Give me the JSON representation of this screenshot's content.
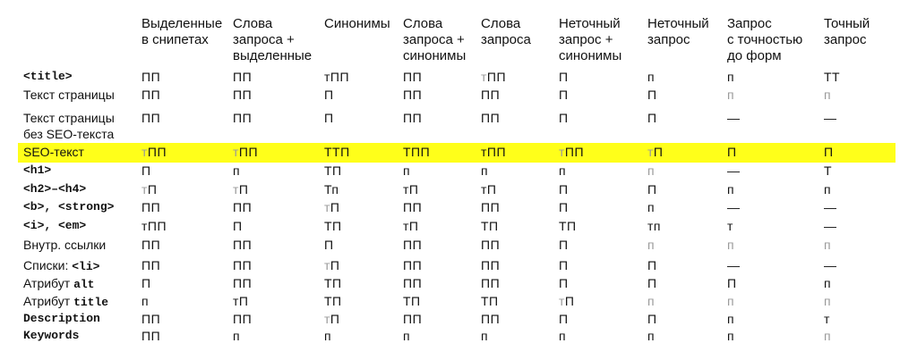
{
  "columns": [
    "Выделенные\nв снипетах",
    "Слова\nзапроса +\nвыделенные",
    "Синонимы",
    "Слова\nзапроса +\nсинонимы",
    "Слова\nзапроса",
    "Неточный\nзапрос +\nсинонимы",
    "Неточный\nзапрос",
    "Запрос\nс точностью\nдо форм",
    "Точный\nзапрос"
  ],
  "rows": [
    {
      "label": "<title>",
      "label_style": "mono",
      "highlight": false,
      "cells": [
        {
          "text": "ПП",
          "gray": false
        },
        {
          "text": "ПП",
          "gray": false
        },
        {
          "text": "тПП",
          "gray": false
        },
        {
          "text": "ПП",
          "gray": false
        },
        {
          "pre": "т",
          "text": "ПП",
          "gray": false
        },
        {
          "text": "П",
          "gray": false
        },
        {
          "text": "п",
          "gray": false
        },
        {
          "text": "п",
          "gray": false
        },
        {
          "text": "ТТ",
          "gray": false
        }
      ]
    },
    {
      "label": "Текст страницы",
      "label_style": "plain",
      "highlight": false,
      "cells": [
        {
          "text": "ПП",
          "gray": false
        },
        {
          "text": "ПП",
          "gray": false
        },
        {
          "text": "П",
          "gray": false
        },
        {
          "text": "ПП",
          "gray": false
        },
        {
          "text": "ПП",
          "gray": false
        },
        {
          "text": "П",
          "gray": false
        },
        {
          "text": "П",
          "gray": false
        },
        {
          "text": "п",
          "gray": true
        },
        {
          "text": "п",
          "gray": true
        }
      ]
    },
    {
      "label": "Текст страницы\nбез SEO-текста",
      "label_style": "plain",
      "highlight": false,
      "cells": [
        {
          "text": "ПП",
          "gray": false
        },
        {
          "text": "ПП",
          "gray": false
        },
        {
          "text": "П",
          "gray": false
        },
        {
          "text": "ПП",
          "gray": false
        },
        {
          "text": "ПП",
          "gray": false
        },
        {
          "text": "П",
          "gray": false
        },
        {
          "text": "П",
          "gray": false
        },
        {
          "text": "—",
          "gray": false
        },
        {
          "text": "—",
          "gray": false
        }
      ]
    },
    {
      "label": "SEO-текст",
      "label_style": "plain",
      "highlight": true,
      "cells": [
        {
          "pre": "т",
          "text": "ПП",
          "gray": false
        },
        {
          "pre": "т",
          "text": "ПП",
          "gray": false
        },
        {
          "text": "ТТП",
          "gray": false
        },
        {
          "text": "ТПП",
          "gray": false
        },
        {
          "text": "тПП",
          "gray": false
        },
        {
          "pre": "т",
          "text": "ПП",
          "gray": false
        },
        {
          "pre": "т",
          "text": "П",
          "gray": false
        },
        {
          "text": "П",
          "gray": false
        },
        {
          "text": "П",
          "gray": false
        }
      ]
    },
    {
      "label": "<h1>",
      "label_style": "mono",
      "highlight": false,
      "cells": [
        {
          "text": "П",
          "gray": false
        },
        {
          "text": "п",
          "gray": false
        },
        {
          "text": "ТП",
          "gray": false
        },
        {
          "text": "п",
          "gray": false
        },
        {
          "text": "п",
          "gray": false
        },
        {
          "text": "п",
          "gray": false
        },
        {
          "text": "п",
          "gray": true
        },
        {
          "text": "—",
          "gray": false
        },
        {
          "text": "Т",
          "gray": false
        }
      ]
    },
    {
      "label": "<h2>–<h4>",
      "label_style": "mono",
      "highlight": false,
      "cells": [
        {
          "pre": "т",
          "text": "П",
          "gray": false
        },
        {
          "pre": "т",
          "text": "П",
          "gray": false
        },
        {
          "text": "Тп",
          "gray": false
        },
        {
          "text": "тП",
          "gray": false
        },
        {
          "text": "тП",
          "gray": false
        },
        {
          "text": "П",
          "gray": false
        },
        {
          "text": "П",
          "gray": false
        },
        {
          "text": "п",
          "gray": false
        },
        {
          "text": "п",
          "gray": false
        }
      ]
    },
    {
      "label": "<b>, <strong>",
      "label_style": "mono",
      "highlight": false,
      "cells": [
        {
          "text": "ПП",
          "gray": false
        },
        {
          "text": "ПП",
          "gray": false
        },
        {
          "pre": "т",
          "text": "П",
          "gray": false
        },
        {
          "text": "ПП",
          "gray": false
        },
        {
          "text": "ПП",
          "gray": false
        },
        {
          "text": "П",
          "gray": false
        },
        {
          "text": "п",
          "gray": false
        },
        {
          "text": "—",
          "gray": false
        },
        {
          "text": "—",
          "gray": false
        }
      ]
    },
    {
      "label": "<i>, <em>",
      "label_style": "mono",
      "highlight": false,
      "cells": [
        {
          "text": "тПП",
          "gray": false
        },
        {
          "text": "П",
          "gray": false
        },
        {
          "text": "ТП",
          "gray": false
        },
        {
          "text": "тП",
          "gray": false
        },
        {
          "text": "ТП",
          "gray": false
        },
        {
          "text": "ТП",
          "gray": false
        },
        {
          "text": "тп",
          "gray": false
        },
        {
          "text": "т",
          "gray": false
        },
        {
          "text": "—",
          "gray": false
        }
      ]
    },
    {
      "label": "Внутр. ссылки",
      "label_style": "plain",
      "highlight": false,
      "cells": [
        {
          "text": "ПП",
          "gray": false
        },
        {
          "text": "ПП",
          "gray": false
        },
        {
          "text": "П",
          "gray": false
        },
        {
          "text": "ПП",
          "gray": false
        },
        {
          "text": "ПП",
          "gray": false
        },
        {
          "text": "П",
          "gray": false
        },
        {
          "text": "п",
          "gray": true
        },
        {
          "text": "п",
          "gray": true
        },
        {
          "text": "п",
          "gray": true
        }
      ]
    },
    {
      "label": "Списки: ",
      "label_code": "<li>",
      "label_style": "mixed",
      "highlight": false,
      "cells": [
        {
          "text": "ПП",
          "gray": false
        },
        {
          "text": "ПП",
          "gray": false
        },
        {
          "pre": "т",
          "text": "П",
          "gray": false
        },
        {
          "text": "ПП",
          "gray": false
        },
        {
          "text": "ПП",
          "gray": false
        },
        {
          "text": "П",
          "gray": false
        },
        {
          "text": "П",
          "gray": false
        },
        {
          "text": "—",
          "gray": false
        },
        {
          "text": "—",
          "gray": false
        }
      ]
    },
    {
      "label": "Атрибут ",
      "label_code": "alt",
      "label_style": "mixed",
      "highlight": false,
      "cells": [
        {
          "text": "П",
          "gray": false
        },
        {
          "text": "ПП",
          "gray": false
        },
        {
          "text": "ТП",
          "gray": false
        },
        {
          "text": "ПП",
          "gray": false
        },
        {
          "text": "ПП",
          "gray": false
        },
        {
          "text": "П",
          "gray": false
        },
        {
          "text": "П",
          "gray": false
        },
        {
          "text": "П",
          "gray": false
        },
        {
          "text": "п",
          "gray": false
        }
      ]
    },
    {
      "label": "Атрибут ",
      "label_code": "title",
      "label_style": "mixed",
      "highlight": false,
      "cells": [
        {
          "text": "п",
          "gray": false
        },
        {
          "text": "тП",
          "gray": false
        },
        {
          "text": "ТП",
          "gray": false
        },
        {
          "text": "ТП",
          "gray": false
        },
        {
          "text": "ТП",
          "gray": false
        },
        {
          "pre": "т",
          "text": "П",
          "gray": false
        },
        {
          "text": "п",
          "gray": true
        },
        {
          "text": "п",
          "gray": true
        },
        {
          "text": "п",
          "gray": true
        }
      ]
    },
    {
      "label": "Description",
      "label_style": "mono",
      "highlight": false,
      "cells": [
        {
          "text": "ПП",
          "gray": false
        },
        {
          "text": "ПП",
          "gray": false
        },
        {
          "pre": "т",
          "text": "П",
          "gray": false
        },
        {
          "text": "ПП",
          "gray": false
        },
        {
          "text": "ПП",
          "gray": false
        },
        {
          "text": "П",
          "gray": false
        },
        {
          "text": "П",
          "gray": false
        },
        {
          "text": "п",
          "gray": false
        },
        {
          "text": "т",
          "gray": false
        }
      ]
    },
    {
      "label": "Keywords",
      "label_style": "mono",
      "highlight": false,
      "cells": [
        {
          "text": "ПП",
          "gray": false
        },
        {
          "text": "п",
          "gray": false
        },
        {
          "text": "п",
          "gray": false
        },
        {
          "text": "п",
          "gray": false
        },
        {
          "text": "п",
          "gray": false
        },
        {
          "text": "п",
          "gray": false
        },
        {
          "text": "п",
          "gray": false
        },
        {
          "text": "п",
          "gray": false
        },
        {
          "text": "п",
          "gray": true
        }
      ]
    }
  ]
}
